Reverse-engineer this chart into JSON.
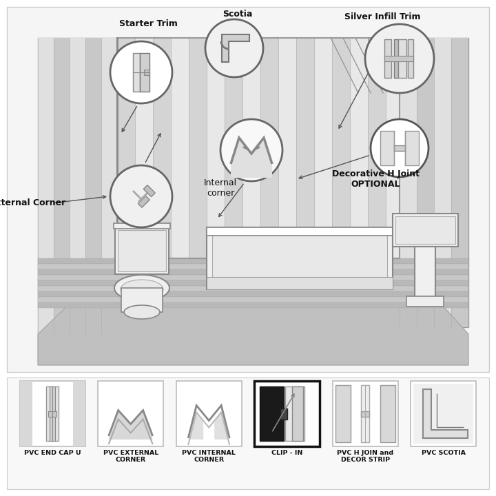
{
  "bg_color": "#ffffff",
  "labels": {
    "starter_trim": "Starter Trim",
    "scotia": "Scotia",
    "silver_infill": "Silver Infill Trim",
    "external_corner": "External Corner",
    "internal_corner": "Internal\ncorner",
    "decorative_h": "Decorative H Joint\nOPTIONAL"
  },
  "bottom_labels": [
    "PVC END CAP U",
    "PVC EXTERNAL\nCORNER",
    "PVC INTERNAL\nCORNER",
    "CLIP - IN",
    "PVC H JOIN and\nDECOR STRIP",
    "PVC SCOTIA"
  ]
}
